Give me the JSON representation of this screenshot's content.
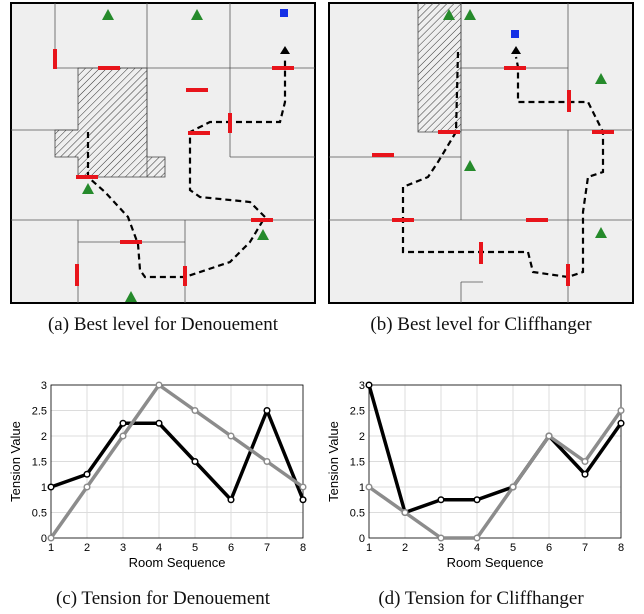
{
  "captions": {
    "a": "(a) Best level for Denouement",
    "b": "(b) Best level for Cliffhanger",
    "c": "(c) Tension for Denouement",
    "d": "(d) Tension for Cliffhanger"
  },
  "colors": {
    "floor": "#efefef",
    "door": "#e8141b",
    "enemy": "#258a2b",
    "goal": "#1530e6",
    "path": "#000000",
    "series_gray": "#8c8c8c"
  },
  "chart_data": [
    {
      "type": "line",
      "xlabel": "Room Sequence",
      "ylabel": "Tension Value",
      "x": [
        1,
        2,
        3,
        4,
        5,
        6,
        7,
        8
      ],
      "xlim": [
        1,
        8
      ],
      "ylim": [
        0,
        3
      ],
      "xticks": [
        "1",
        "2",
        "3",
        "4",
        "5",
        "6",
        "7",
        "8"
      ],
      "yticks": [
        "0",
        "0.5",
        "1",
        "1.5",
        "2",
        "2.5",
        "3"
      ],
      "grid": true,
      "series": [
        {
          "color": "#000000",
          "values": [
            1,
            1.25,
            2.25,
            2.25,
            1.5,
            0.75,
            2.5,
            0.75
          ]
        },
        {
          "color": "#8c8c8c",
          "values": [
            0,
            1,
            2,
            3,
            2.5,
            2,
            1.5,
            1
          ]
        }
      ]
    },
    {
      "type": "line",
      "xlabel": "Room Sequence",
      "ylabel": "Tension Value",
      "x": [
        1,
        2,
        3,
        4,
        5,
        6,
        7,
        8
      ],
      "xlim": [
        1,
        8
      ],
      "ylim": [
        0,
        3
      ],
      "xticks": [
        "1",
        "2",
        "3",
        "4",
        "5",
        "6",
        "7",
        "8"
      ],
      "yticks": [
        "0",
        "0.5",
        "1",
        "1.5",
        "2",
        "2.5",
        "3"
      ],
      "grid": true,
      "series": [
        {
          "color": "#000000",
          "values": [
            3,
            0.5,
            0.75,
            0.75,
            1,
            2,
            1.25,
            2.25
          ]
        },
        {
          "color": "#8c8c8c",
          "values": [
            1,
            0.5,
            0,
            0,
            1,
            2,
            1.5,
            2.5
          ]
        }
      ]
    }
  ]
}
